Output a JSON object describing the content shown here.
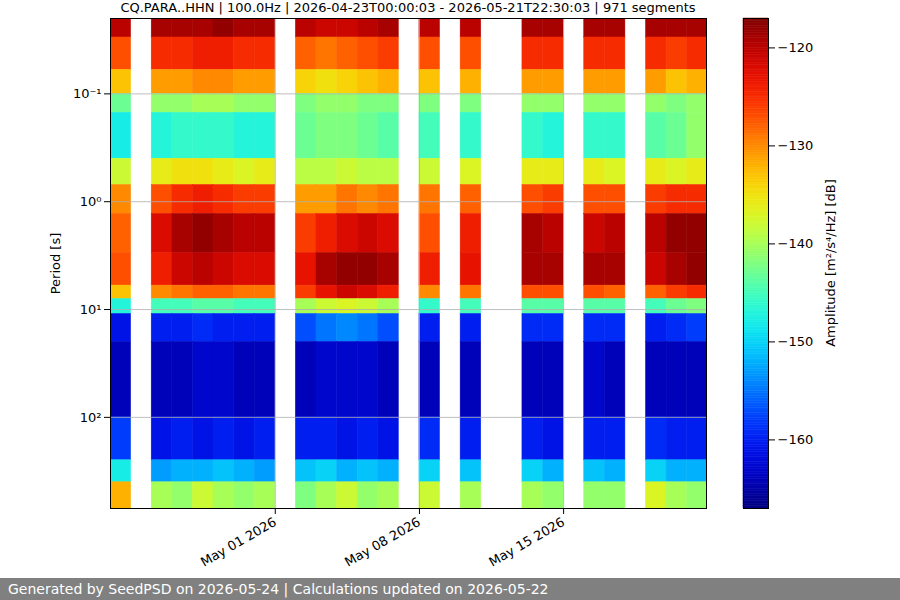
{
  "chart_data": {
    "type": "heatmap",
    "title": "CQ.PARA..HHN | 100.0Hz | 2026-04-23T00:00:03 - 2026-05-21T22:30:03 | 971 segments",
    "ylabel": "Period [s]",
    "colorbar_label": "Amplitude [m²/s⁴/Hz] [dB]",
    "footer": "Generated by SeedPSD on 2026-05-24 | Calculations updated on 2026-05-22",
    "log": "y",
    "grid": true,
    "xlim": [
      "2026-04-23T00:00:03Z",
      "2026-05-21T22:30:03Z"
    ],
    "xticks": [
      {
        "value": "2026-05-01",
        "label": "May 01 2026"
      },
      {
        "value": "2026-05-08",
        "label": "May 08 2026"
      },
      {
        "value": "2026-05-15",
        "label": "May 15 2026"
      }
    ],
    "ylim": [
      0.02,
      700
    ],
    "yticks": [
      {
        "value": 0.1,
        "label": "10⁻¹"
      },
      {
        "value": 1,
        "label": "10⁰"
      },
      {
        "value": 10,
        "label": "10¹"
      },
      {
        "value": 100,
        "label": "10²"
      }
    ],
    "clim": [
      -167,
      -117
    ],
    "cticks": [
      {
        "value": -120,
        "label": "−120"
      },
      {
        "value": -130,
        "label": "−130"
      },
      {
        "value": -140,
        "label": "−140"
      },
      {
        "value": -150,
        "label": "−150"
      },
      {
        "value": -160,
        "label": "−160"
      }
    ],
    "x_edges": [
      "2026-04-23",
      "2026-04-24",
      "2026-04-25",
      "2026-04-26",
      "2026-04-27",
      "2026-04-28",
      "2026-04-29",
      "2026-04-30",
      "2026-05-01",
      "2026-05-02",
      "2026-05-03",
      "2026-05-04",
      "2026-05-05",
      "2026-05-06",
      "2026-05-07",
      "2026-05-08",
      "2026-05-09",
      "2026-05-10",
      "2026-05-11",
      "2026-05-12",
      "2026-05-13",
      "2026-05-14",
      "2026-05-15",
      "2026-05-16",
      "2026-05-17",
      "2026-05-18",
      "2026-05-19",
      "2026-05-20",
      "2026-05-21",
      "2026-05-22"
    ],
    "y_edges": [
      0.02,
      0.03,
      0.06,
      0.1,
      0.15,
      0.4,
      0.7,
      1.3,
      3,
      6,
      8,
      11,
      20,
      100,
      250,
      400,
      700
    ],
    "z": [
      [
        -120,
        null,
        -119,
        -119,
        -119,
        -118,
        -119,
        -119,
        null,
        -120,
        -121,
        -121,
        -120,
        -119,
        null,
        -120,
        null,
        -120,
        null,
        null,
        -119,
        -119,
        null,
        -119,
        -119,
        null,
        -119,
        -119,
        -119
      ],
      [
        -127,
        null,
        -125,
        -125,
        -124,
        -124,
        -125,
        -125,
        null,
        -128,
        -129,
        -128,
        -127,
        -126,
        null,
        -127,
        null,
        -127,
        null,
        null,
        -125,
        -125,
        null,
        -125,
        -125,
        null,
        -125,
        -126,
        -125
      ],
      [
        -133,
        null,
        -131,
        -131,
        -130,
        -130,
        -131,
        -131,
        null,
        -134,
        -135,
        -134,
        -133,
        -132,
        null,
        -133,
        null,
        -132,
        null,
        null,
        -131,
        -131,
        null,
        -131,
        -131,
        null,
        -131,
        -133,
        -132
      ],
      [
        -143,
        null,
        -141,
        -141,
        -140,
        -140,
        -141,
        -141,
        null,
        -142,
        -141,
        -141,
        -142,
        -142,
        null,
        -142,
        null,
        -142,
        null,
        null,
        -141,
        -141,
        null,
        -141,
        -141,
        null,
        -141,
        -142,
        -141
      ],
      [
        -148,
        null,
        -147,
        -146,
        -146,
        -146,
        -147,
        -147,
        null,
        -143,
        -142,
        -142,
        -143,
        -144,
        null,
        -145,
        null,
        -146,
        null,
        null,
        -146,
        -147,
        null,
        -146,
        -146,
        null,
        -144,
        -143,
        -141
      ],
      [
        -138,
        null,
        -136,
        -135,
        -135,
        -136,
        -137,
        -136,
        null,
        -139,
        -139,
        -138,
        -139,
        -139,
        null,
        -138,
        null,
        -137,
        null,
        null,
        -136,
        -136,
        null,
        -136,
        -137,
        null,
        -136,
        -137,
        -136
      ],
      [
        -130,
        null,
        -127,
        -125,
        -124,
        -125,
        -126,
        -126,
        null,
        -131,
        -131,
        -129,
        -130,
        -129,
        null,
        -129,
        null,
        -128,
        null,
        null,
        -127,
        -126,
        null,
        -127,
        -127,
        null,
        -126,
        -125,
        -125
      ],
      [
        -128,
        null,
        -122,
        -119,
        -118,
        -119,
        -120,
        -120,
        null,
        -126,
        -124,
        -122,
        -121,
        -122,
        null,
        -127,
        null,
        -124,
        null,
        null,
        -119,
        -120,
        null,
        -121,
        -120,
        null,
        -120,
        -118,
        -118
      ],
      [
        -127,
        null,
        -124,
        -121,
        -120,
        -121,
        -122,
        -122,
        null,
        -123,
        -119,
        -118,
        -118,
        -119,
        null,
        -124,
        null,
        -123,
        null,
        null,
        -119,
        -119,
        null,
        -119,
        -119,
        null,
        -121,
        -119,
        -118
      ],
      [
        -133,
        null,
        -130,
        -129,
        -128,
        -128,
        -129,
        -129,
        null,
        -126,
        -123,
        -121,
        -122,
        -124,
        null,
        -130,
        null,
        -129,
        null,
        null,
        -127,
        -127,
        null,
        -127,
        -128,
        null,
        -128,
        -126,
        -125
      ],
      [
        -147,
        null,
        -145,
        -145,
        -144,
        -144,
        -145,
        -145,
        null,
        -140,
        -138,
        -137,
        -138,
        -140,
        null,
        -146,
        null,
        -145,
        null,
        null,
        -144,
        -144,
        null,
        -144,
        -144,
        null,
        -145,
        -143,
        -142
      ],
      [
        -161,
        null,
        -160,
        -160,
        -159,
        -160,
        -160,
        -160,
        null,
        -157,
        -155,
        -154,
        -155,
        -157,
        null,
        -160,
        null,
        -160,
        null,
        null,
        -159,
        -159,
        null,
        -159,
        -159,
        null,
        -160,
        -159,
        -158
      ],
      [
        -164,
        null,
        -164,
        -164,
        -163,
        -163,
        -164,
        -164,
        null,
        -164,
        -163,
        -163,
        -163,
        -164,
        null,
        -164,
        null,
        -164,
        null,
        null,
        -164,
        -164,
        null,
        -163,
        -164,
        null,
        -164,
        -164,
        -164
      ],
      [
        -158,
        null,
        -161,
        -160,
        -161,
        -160,
        -161,
        -160,
        null,
        -160,
        -160,
        -161,
        -160,
        -161,
        null,
        -159,
        null,
        -160,
        null,
        null,
        -160,
        -161,
        null,
        -160,
        -160,
        null,
        -159,
        -160,
        -160
      ],
      [
        -148,
        null,
        -153,
        -152,
        -152,
        -151,
        -152,
        -153,
        null,
        -151,
        -150,
        -152,
        -151,
        -152,
        null,
        -150,
        null,
        -151,
        null,
        null,
        -150,
        -152,
        null,
        -151,
        -152,
        null,
        -150,
        -152,
        -152
      ],
      [
        -132,
        null,
        -140,
        -141,
        -138,
        -140,
        -141,
        -140,
        null,
        -142,
        -140,
        -138,
        -141,
        -140,
        null,
        -138,
        null,
        -140,
        null,
        null,
        -140,
        -141,
        null,
        -141,
        -141,
        null,
        -137,
        -140,
        -141
      ]
    ]
  }
}
